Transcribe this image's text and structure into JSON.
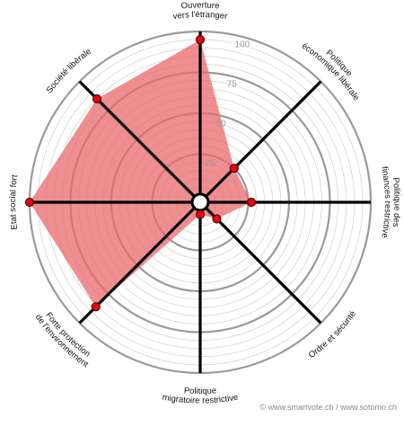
{
  "chart_data": {
    "type": "radar",
    "axes": [
      "Ouverture\nvers l'étranger",
      "Politique\néconomique libérale",
      "Politique des\nfinances restrictive",
      "Ordre et sécurité",
      "Politique\nmigratoire restrictive",
      "Forte protection\nde l'environnement",
      "Etat social fort",
      "Société libérale"
    ],
    "values": [
      95,
      25,
      27,
      10,
      3,
      86,
      100,
      85
    ],
    "range": [
      0,
      100
    ],
    "ring_labels": [
      "25",
      "50",
      "75",
      "100"
    ],
    "minor_gridlines": true,
    "fill_color": "#e8686c",
    "fill_opacity": 0.75,
    "marker_color": "#e30613",
    "spoke_color": "#000000",
    "grid_color": "#9a9a9a"
  },
  "footer": {
    "credit": "© www.smartvote.ch / www.sotomo.ch"
  }
}
